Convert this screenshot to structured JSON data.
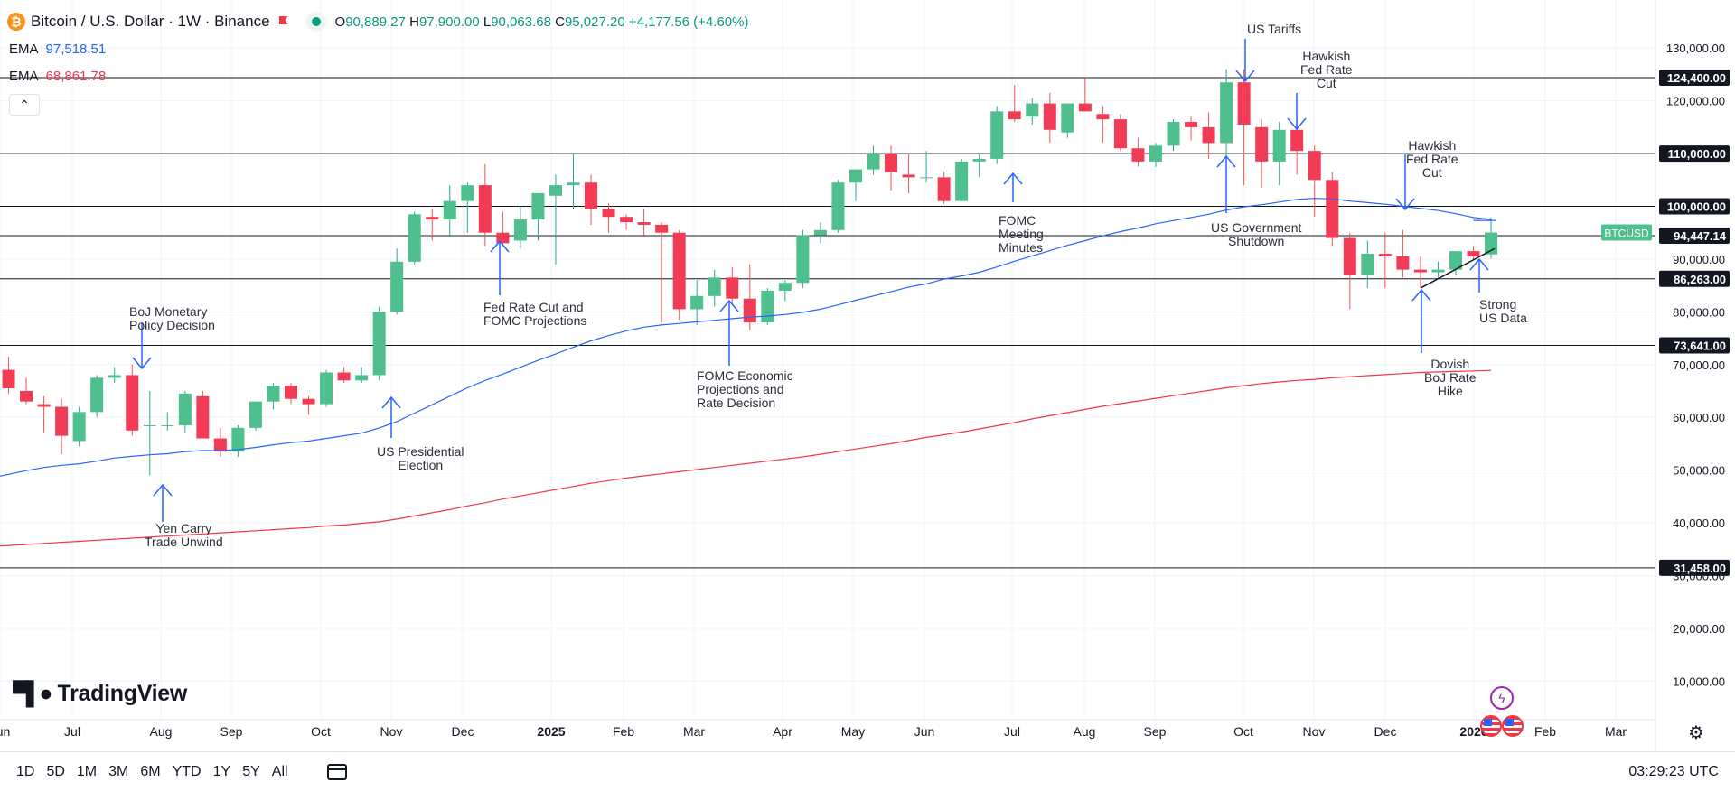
{
  "header": {
    "symbol_title": "Bitcoin / U.S. Dollar · 1W · Binance",
    "ohlc": {
      "o_label": "O",
      "o": "90,889.27",
      "h_label": "H",
      "h": "97,900.00",
      "l_label": "L",
      "l": "90,063.68",
      "c_label": "C",
      "c": "95,027.20",
      "change": "+4,177.56 (+4.60%)"
    },
    "ema1": {
      "label": "EMA",
      "value": "97,518.51",
      "color": "#2962ff"
    },
    "ema2": {
      "label": "EMA",
      "value": "68,861.78",
      "color": "#f23645"
    },
    "collapse_icon": "chevron-up-icon"
  },
  "logo": {
    "text": "TradingView",
    "icon": "tradingview-logo-icon"
  },
  "bottombar": {
    "ranges": [
      "1D",
      "5D",
      "1M",
      "3M",
      "6M",
      "YTD",
      "1Y",
      "5Y",
      "All"
    ],
    "date_range_icon": "calendar-icon",
    "time": "03:29:23 UTC",
    "settings_icon": "gear-icon"
  },
  "annotations": {
    "boj": "BoJ Monetary\nPolicy Decision",
    "yen": "Yen Carry\nTrade Unwind",
    "election": "US Presidential\nElection",
    "fedcut": "Fed Rate Cut and\nFOMC Projections",
    "fomc_econ": "FOMC Economic\nProjections and\nRate Decision",
    "fomc_min": "FOMC\nMeeting\nMinutes",
    "tariffs": "US Tariffs",
    "shutdown": "US Government\nShutdown",
    "hawkish1": "Hawkish\nFed Rate\nCut",
    "hawkish2": "Hawkish\nFed Rate\nCut",
    "dovish": "Dovish\nBoJ Rate\nHike",
    "strong_us": "Strong\nUS Data"
  },
  "chart_data": {
    "type": "candlestick",
    "symbol": "BTCUSD",
    "interval": "1W",
    "y_axis": {
      "scale": "linear",
      "ylim": [
        0,
        140000
      ],
      "ticks": [
        "10,000.00",
        "20,000.00",
        "30,000.00",
        "40,000.00",
        "50,000.00",
        "60,000.00",
        "70,000.00",
        "80,000.00",
        "90,000.00",
        "100,000.00",
        "110,000.00",
        "120,000.00",
        "130,000.00"
      ]
    },
    "x_axis": {
      "ticks": [
        "Jun",
        "Jul",
        "Aug",
        "Sep",
        "Oct",
        "Nov",
        "Dec",
        "2025",
        "Feb",
        "Mar",
        "Apr",
        "May",
        "Jun",
        "Jul",
        "Aug",
        "Sep",
        "Oct",
        "Nov",
        "Dec",
        "2026",
        "Feb",
        "Mar"
      ]
    },
    "horizontal_levels": [
      {
        "value": 124400,
        "label": "124,400.00"
      },
      {
        "value": 110000,
        "label": "110,000.00"
      },
      {
        "value": 100000,
        "label": "100,000.00"
      },
      {
        "value": 94447.14,
        "label": "94,447.14"
      },
      {
        "value": 86263,
        "label": "86,263.00"
      },
      {
        "value": 73641,
        "label": "73,641.00"
      },
      {
        "value": 31458,
        "label": "31,458.00"
      }
    ],
    "current_price_label": "BTCUSD",
    "candles": [
      [
        70500,
        71500,
        66500,
        68000
      ],
      [
        69000,
        71500,
        64500,
        65500
      ],
      [
        65000,
        67500,
        62500,
        63000
      ],
      [
        62500,
        64000,
        57000,
        62000
      ],
      [
        62000,
        63500,
        53000,
        56500
      ],
      [
        55500,
        62000,
        54500,
        61000
      ],
      [
        61000,
        68000,
        60000,
        67500
      ],
      [
        67500,
        69500,
        66500,
        68000
      ],
      [
        68000,
        70000,
        56500,
        57500
      ],
      [
        58500,
        65000,
        49000,
        58500
      ],
      [
        58500,
        61000,
        57500,
        58500
      ],
      [
        58500,
        65000,
        57000,
        64500
      ],
      [
        64000,
        65000,
        56500,
        56000
      ],
      [
        56000,
        58000,
        52500,
        53500
      ],
      [
        53500,
        58500,
        52500,
        58000
      ],
      [
        58000,
        63000,
        57500,
        63000
      ],
      [
        63000,
        66500,
        61500,
        66000
      ],
      [
        66000,
        66500,
        62500,
        63500
      ],
      [
        63500,
        64000,
        60500,
        62500
      ],
      [
        62500,
        69000,
        62000,
        68500
      ],
      [
        68500,
        69500,
        66500,
        67000
      ],
      [
        67000,
        69500,
        66500,
        68000
      ],
      [
        68000,
        81000,
        67000,
        80000
      ],
      [
        80000,
        92000,
        79500,
        89500
      ],
      [
        89500,
        99000,
        89000,
        98500
      ],
      [
        98000,
        99500,
        93500,
        97500
      ],
      [
        97500,
        104000,
        94500,
        101000
      ],
      [
        101000,
        104500,
        95000,
        104000
      ],
      [
        104000,
        108000,
        92500,
        95000
      ],
      [
        95000,
        99000,
        92500,
        93000
      ],
      [
        93500,
        100000,
        92000,
        97500
      ],
      [
        97500,
        102000,
        93500,
        102500
      ],
      [
        102000,
        106000,
        89000,
        104000
      ],
      [
        104000,
        110000,
        99500,
        104500
      ],
      [
        104500,
        106000,
        96500,
        99500
      ],
      [
        99500,
        100500,
        95000,
        98000
      ],
      [
        98000,
        98500,
        95500,
        97000
      ],
      [
        97000,
        99500,
        94500,
        96500
      ],
      [
        96500,
        97000,
        78000,
        95000
      ],
      [
        95000,
        95500,
        78500,
        80500
      ],
      [
        80500,
        86000,
        77500,
        83000
      ],
      [
        83000,
        88000,
        81000,
        86500
      ],
      [
        86500,
        88500,
        81500,
        82500
      ],
      [
        82500,
        89000,
        76500,
        78000
      ],
      [
        78000,
        84500,
        77500,
        84000
      ],
      [
        84000,
        86000,
        82000,
        85500
      ],
      [
        85500,
        95500,
        84500,
        94500
      ],
      [
        94500,
        97000,
        93000,
        95500
      ],
      [
        95500,
        105000,
        95000,
        104500
      ],
      [
        104500,
        106000,
        101000,
        107000
      ],
      [
        107000,
        111500,
        106000,
        110000
      ],
      [
        110000,
        111500,
        103000,
        106500
      ],
      [
        106000,
        110000,
        102500,
        105500
      ],
      [
        105500,
        110500,
        104500,
        105500
      ],
      [
        105500,
        106500,
        100500,
        101000
      ],
      [
        101000,
        109000,
        101000,
        108500
      ],
      [
        108500,
        110000,
        105500,
        109000
      ],
      [
        109000,
        119000,
        108000,
        118000
      ],
      [
        118000,
        123000,
        116000,
        116500
      ],
      [
        117000,
        120500,
        115500,
        119500
      ],
      [
        119500,
        121500,
        112000,
        114500
      ],
      [
        114000,
        119500,
        113000,
        119500
      ],
      [
        119500,
        124400,
        118000,
        118000
      ],
      [
        117500,
        119000,
        112000,
        116500
      ],
      [
        116500,
        117500,
        110500,
        111000
      ],
      [
        111000,
        113000,
        107500,
        108500
      ],
      [
        108500,
        112000,
        107500,
        111500
      ],
      [
        111500,
        116500,
        110500,
        116000
      ],
      [
        116000,
        117000,
        112500,
        115000
      ],
      [
        115000,
        117800,
        109000,
        112000
      ],
      [
        112000,
        126000,
        109000,
        123500
      ],
      [
        123500,
        126000,
        104000,
        115500
      ],
      [
        115000,
        116500,
        103500,
        108500
      ],
      [
        108500,
        116000,
        104000,
        114500
      ],
      [
        114500,
        116500,
        106000,
        110500
      ],
      [
        110500,
        111500,
        98000,
        105000
      ],
      [
        105000,
        106500,
        92500,
        94000
      ],
      [
        94000,
        95000,
        80500,
        87000
      ],
      [
        87000,
        93500,
        84500,
        91000
      ],
      [
        91000,
        95000,
        84500,
        90500
      ],
      [
        90500,
        95500,
        86500,
        88000
      ],
      [
        88000,
        90500,
        84500,
        87500
      ],
      [
        87500,
        89500,
        86500,
        88000
      ],
      [
        88000,
        91500,
        87000,
        91500
      ],
      [
        91500,
        92500,
        90000,
        90500
      ],
      [
        90900,
        97900,
        90100,
        95027
      ]
    ],
    "series": [
      {
        "name": "EMA",
        "color": "#2962ff",
        "values": [
          48500,
          49200,
          49900,
          50500,
          50900,
          51200,
          51700,
          52300,
          52600,
          52900,
          53100,
          53500,
          53700,
          53700,
          53900,
          54300,
          54800,
          55200,
          55500,
          56000,
          56500,
          57000,
          58000,
          59200,
          60800,
          62400,
          64000,
          65600,
          67000,
          68200,
          69500,
          70800,
          72000,
          73300,
          74500,
          75500,
          76400,
          77100,
          77500,
          77800,
          78100,
          78400,
          78700,
          79000,
          79200,
          79500,
          79900,
          80500,
          81300,
          82200,
          83000,
          83800,
          84700,
          85300,
          86200,
          86800,
          87500,
          88500,
          89600,
          90600,
          91600,
          92600,
          93500,
          94400,
          95200,
          95900,
          96700,
          97300,
          97900,
          98500,
          99300,
          99900,
          100300,
          100800,
          101300,
          101500,
          101400,
          101000,
          100700,
          100400,
          100000,
          99600,
          99200,
          98600,
          97900,
          97500
        ]
      },
      {
        "name": "EMA",
        "color": "#f23645",
        "values": [
          35500,
          35700,
          35900,
          36100,
          36300,
          36500,
          36700,
          36900,
          37100,
          37300,
          37500,
          37700,
          37900,
          38100,
          38300,
          38500,
          38700,
          38900,
          39100,
          39400,
          39600,
          39900,
          40200,
          40700,
          41300,
          41900,
          42500,
          43200,
          43800,
          44500,
          45100,
          45700,
          46300,
          46900,
          47500,
          48000,
          48500,
          48900,
          49300,
          49700,
          50100,
          50500,
          50900,
          51300,
          51700,
          52100,
          52500,
          53000,
          53500,
          54000,
          54500,
          55000,
          55600,
          56200,
          56700,
          57200,
          57800,
          58400,
          59000,
          59700,
          60300,
          60900,
          61500,
          62100,
          62600,
          63100,
          63600,
          64100,
          64600,
          65100,
          65600,
          66000,
          66400,
          66700,
          67000,
          67200,
          67500,
          67700,
          67900,
          68100,
          68300,
          68500,
          68600,
          68700,
          68800,
          68900
        ]
      }
    ],
    "annotation_arrows": [
      {
        "key": "boj",
        "week": 20,
        "dir": "down"
      },
      {
        "key": "yen",
        "week": 21,
        "dir": "up"
      },
      {
        "key": "election",
        "week": 48,
        "dir": "up"
      },
      {
        "key": "fedcut",
        "week": 54,
        "dir": "up"
      },
      {
        "key": "fomc_econ",
        "week": 69,
        "dir": "up"
      },
      {
        "key": "fomc_min",
        "week": 85,
        "dir": "up"
      },
      {
        "key": "tariffs",
        "week": 96,
        "dir": "down"
      },
      {
        "key": "shutdown",
        "week": 95,
        "dir": "up"
      },
      {
        "key": "hawkish1",
        "week": 99,
        "dir": "down"
      },
      {
        "key": "hawkish2",
        "week": 104,
        "dir": "down"
      },
      {
        "key": "dovish",
        "week": 106,
        "dir": "up"
      },
      {
        "key": "strong_us",
        "week": 109,
        "dir": "up"
      }
    ]
  }
}
